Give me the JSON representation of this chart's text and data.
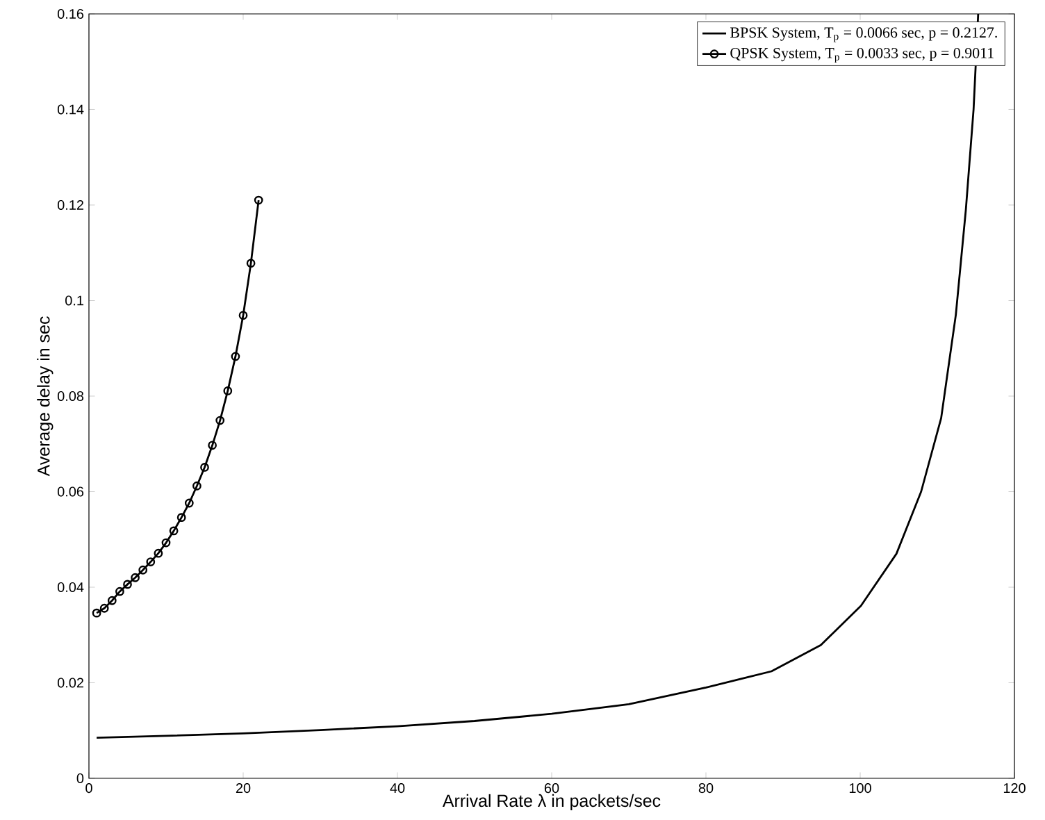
{
  "chart_data": {
    "type": "line",
    "xlabel": "Arrival Rate λ in packets/sec",
    "ylabel": "Average delay in sec",
    "xlim": [
      0,
      120
    ],
    "ylim": [
      0,
      0.16
    ],
    "xticks": [
      0,
      20,
      40,
      60,
      80,
      100,
      120
    ],
    "yticks": [
      0,
      0.02,
      0.04,
      0.06,
      0.08,
      0.1,
      0.12,
      0.14,
      0.16
    ],
    "grid": false,
    "legend": "top right",
    "series": [
      {
        "name": "BPSK System, T$_{p}$ = 0.0066 sec, p = 0.2127.",
        "color": "#000000",
        "marker": "none",
        "line_style": "solid",
        "x": [
          1,
          10,
          20,
          30,
          40,
          50,
          60,
          70,
          80,
          85,
          88.5,
          94.9,
          100.1,
          104.7,
          107.9,
          110.5,
          112.4,
          113.7,
          114.7,
          115.3
        ],
        "values": [
          0.0085,
          0.0089,
          0.0094,
          0.0101,
          0.0109,
          0.012,
          0.0135,
          0.0155,
          0.019,
          0.021,
          0.0224,
          0.0279,
          0.0361,
          0.047,
          0.06,
          0.0754,
          0.097,
          0.119,
          0.14,
          0.16
        ]
      },
      {
        "name": "QPSK System, T$_{p}$ = 0.0033 sec, p = 0.9011",
        "color": "#000000",
        "marker": "circle",
        "line_style": "solid",
        "x": [
          1,
          2,
          3,
          4,
          5,
          6,
          7,
          8,
          9,
          10,
          11,
          12,
          13,
          14,
          15,
          16,
          17,
          18,
          19,
          20,
          21,
          22
        ],
        "values": [
          0.0346,
          0.0356,
          0.0372,
          0.0391,
          0.0406,
          0.042,
          0.0436,
          0.0453,
          0.0471,
          0.0493,
          0.0518,
          0.0546,
          0.0576,
          0.0612,
          0.0651,
          0.0697,
          0.0749,
          0.0811,
          0.0883,
          0.0969,
          0.1078,
          0.121
        ]
      }
    ]
  }
}
